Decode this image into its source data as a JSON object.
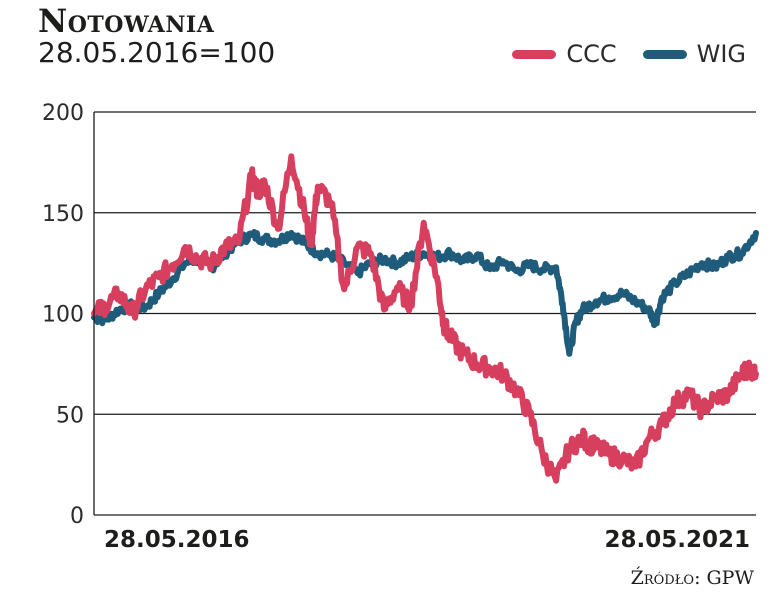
{
  "title": "Notowania",
  "subtitle": "28.05.2016=100",
  "source": "Źródło: GPW",
  "colors": {
    "ccc": "#d6405e",
    "wig": "#1f5b7a",
    "grid": "#1d1d1b"
  },
  "chart_data": {
    "type": "line",
    "title": "Notowania",
    "subtitle": "28.05.2016=100",
    "legend_position": "top-right",
    "grid": true,
    "ylim": [
      0,
      200
    ],
    "yticks": [
      "0",
      "50",
      "100",
      "150",
      "200"
    ],
    "x_labels": {
      "start": "28.05.2016",
      "end": "28.05.2021"
    },
    "x_range": [
      2016.41,
      2021.41
    ],
    "series": [
      {
        "name": "CCC",
        "color": "#d6405e",
        "x": [
          2016.41,
          2016.5,
          2016.6,
          2016.7,
          2016.8,
          2016.9,
          2017.0,
          2017.1,
          2017.2,
          2017.3,
          2017.4,
          2017.5,
          2017.6,
          2017.65,
          2017.7,
          2017.8,
          2017.9,
          2018.0,
          2018.05,
          2018.1,
          2018.2,
          2018.3,
          2018.4,
          2018.5,
          2018.6,
          2018.7,
          2018.8,
          2018.9,
          2019.0,
          2019.05,
          2019.1,
          2019.2,
          2019.3,
          2019.4,
          2019.5,
          2019.6,
          2019.7,
          2019.8,
          2019.9,
          2020.0,
          2020.1,
          2020.15,
          2020.2,
          2020.3,
          2020.4,
          2020.5,
          2020.6,
          2020.7,
          2020.8,
          2020.9,
          2021.0,
          2021.1,
          2021.2,
          2021.3,
          2021.35,
          2021.41
        ],
        "y": [
          100,
          104,
          110,
          100,
          112,
          118,
          124,
          133,
          127,
          125,
          133,
          135,
          168,
          160,
          165,
          142,
          178,
          150,
          135,
          163,
          155,
          112,
          133,
          130,
          102,
          113,
          104,
          145,
          118,
          95,
          88,
          80,
          75,
          73,
          70,
          62,
          50,
          30,
          17,
          33,
          38,
          35,
          34,
          30,
          28,
          24,
          38,
          45,
          56,
          60,
          52,
          58,
          60,
          70,
          73,
          70
        ]
      },
      {
        "name": "WIG",
        "color": "#1f5b7a",
        "x": [
          2016.41,
          2016.5,
          2016.6,
          2016.7,
          2016.8,
          2016.9,
          2017.0,
          2017.1,
          2017.2,
          2017.3,
          2017.4,
          2017.5,
          2017.6,
          2017.7,
          2017.8,
          2017.9,
          2018.0,
          2018.1,
          2018.2,
          2018.3,
          2018.4,
          2018.5,
          2018.6,
          2018.7,
          2018.8,
          2018.9,
          2019.0,
          2019.1,
          2019.2,
          2019.3,
          2019.4,
          2019.5,
          2019.6,
          2019.7,
          2019.8,
          2019.9,
          2019.95,
          2020.0,
          2020.05,
          2020.1,
          2020.2,
          2020.3,
          2020.4,
          2020.5,
          2020.6,
          2020.65,
          2020.7,
          2020.8,
          2020.9,
          2021.0,
          2021.1,
          2021.2,
          2021.3,
          2021.41
        ],
        "y": [
          98,
          97,
          102,
          104,
          103,
          110,
          117,
          125,
          127,
          123,
          130,
          136,
          139,
          137,
          136,
          140,
          135,
          130,
          129,
          125,
          120,
          125,
          127,
          125,
          128,
          130,
          128,
          130,
          126,
          129,
          122,
          126,
          121,
          124,
          122,
          123,
          105,
          80,
          96,
          102,
          106,
          108,
          110,
          106,
          102,
          95,
          108,
          115,
          120,
          125,
          123,
          128,
          130,
          140
        ]
      }
    ]
  }
}
